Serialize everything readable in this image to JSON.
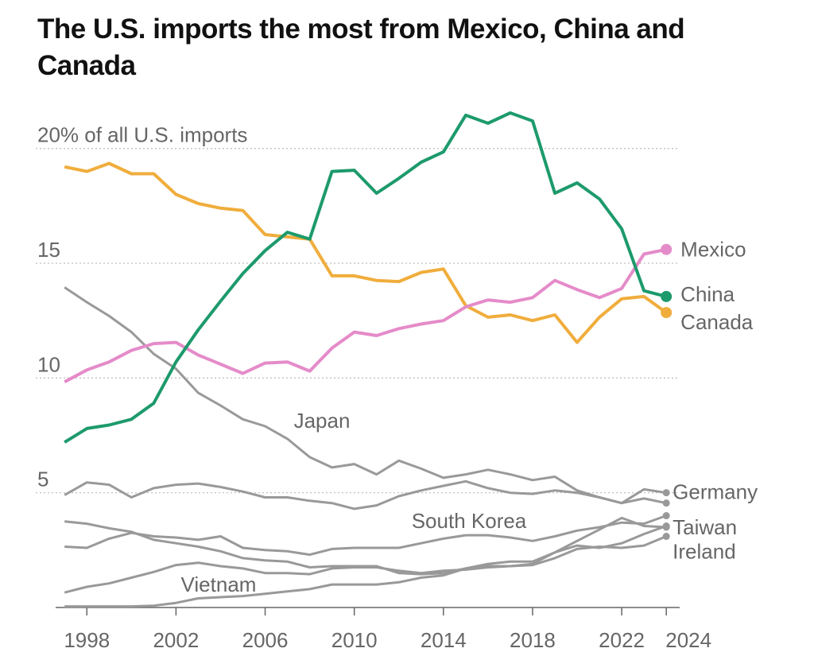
{
  "chart_data": {
    "type": "line",
    "title": "The U.S. imports the most from Mexico, China and Canada",
    "x": [
      1997,
      1998,
      1999,
      2000,
      2001,
      2002,
      2003,
      2004,
      2005,
      2006,
      2007,
      2008,
      2009,
      2010,
      2011,
      2012,
      2013,
      2014,
      2015,
      2016,
      2017,
      2018,
      2019,
      2020,
      2021,
      2022,
      2023,
      2024
    ],
    "xlim": [
      1996.6,
      2024.6
    ],
    "xticks": [
      1998,
      2002,
      2006,
      2010,
      2014,
      2018,
      2022,
      2024
    ],
    "ylim": [
      0,
      22
    ],
    "yticks": [
      5,
      10,
      15,
      {
        "value": 20,
        "label": "20% of all U.S. imports"
      }
    ],
    "grid": true,
    "series": [
      {
        "name": "Mexico",
        "color": "#e58bc9",
        "values": [
          9.83,
          10.35,
          10.7,
          11.2,
          11.5,
          11.55,
          11.0,
          10.6,
          10.2,
          10.65,
          10.7,
          10.3,
          11.3,
          12.0,
          11.85,
          12.15,
          12.35,
          12.5,
          13.1,
          13.4,
          13.3,
          13.5,
          14.25,
          13.85,
          13.5,
          13.9,
          15.4,
          15.6
        ]
      },
      {
        "name": "China",
        "color": "#1d9a6c",
        "values": [
          7.2,
          7.8,
          7.95,
          8.2,
          8.9,
          10.7,
          12.1,
          13.35,
          14.55,
          15.55,
          16.35,
          16.05,
          19.0,
          19.05,
          18.05,
          18.7,
          19.4,
          19.85,
          21.45,
          21.1,
          21.55,
          21.2,
          18.05,
          18.5,
          17.8,
          16.5,
          13.8,
          13.55
        ]
      },
      {
        "name": "Canada",
        "color": "#f0ad3c",
        "values": [
          19.2,
          19.0,
          19.35,
          18.9,
          18.9,
          18.0,
          17.6,
          17.4,
          17.3,
          16.25,
          16.15,
          16.05,
          14.45,
          14.45,
          14.25,
          14.2,
          14.6,
          14.75,
          13.15,
          12.65,
          12.75,
          12.5,
          12.75,
          11.55,
          12.65,
          13.45,
          13.55,
          12.85
        ]
      },
      {
        "name": "Japan",
        "color": "#999999",
        "values": [
          13.95,
          13.3,
          12.7,
          12.0,
          11.05,
          10.4,
          9.35,
          8.8,
          8.2,
          7.9,
          7.35,
          6.55,
          6.1,
          6.25,
          5.8,
          6.4,
          6.05,
          5.65,
          5.8,
          6.0,
          5.8,
          5.55,
          5.7,
          5.1,
          4.8,
          4.55,
          4.75,
          4.55
        ]
      },
      {
        "name": "Germany",
        "color": "#999999",
        "values": [
          4.9,
          5.45,
          5.35,
          4.8,
          5.2,
          5.35,
          5.4,
          5.25,
          5.05,
          4.8,
          4.8,
          4.65,
          4.55,
          4.3,
          4.45,
          4.85,
          5.1,
          5.3,
          5.5,
          5.2,
          5.0,
          4.95,
          5.1,
          5.0,
          4.8,
          4.55,
          5.15,
          5.0
        ]
      },
      {
        "name": "South Korea",
        "color": "#999999",
        "values": [
          2.65,
          2.6,
          3.0,
          3.25,
          3.1,
          3.05,
          2.95,
          3.1,
          2.6,
          2.5,
          2.45,
          2.3,
          2.55,
          2.6,
          2.6,
          2.6,
          2.8,
          3.0,
          3.15,
          3.15,
          3.05,
          2.9,
          3.1,
          3.35,
          3.5,
          3.7,
          3.65,
          4.0
        ]
      },
      {
        "name": "Taiwan",
        "color": "#999999",
        "values": [
          3.75,
          3.65,
          3.45,
          3.3,
          2.95,
          2.8,
          2.65,
          2.45,
          2.15,
          2.05,
          2.0,
          1.75,
          1.8,
          1.8,
          1.8,
          1.5,
          1.45,
          1.5,
          1.7,
          1.8,
          1.8,
          1.9,
          2.4,
          2.9,
          3.4,
          3.9,
          3.55,
          3.5
        ]
      },
      {
        "name": "Ireland",
        "color": "#999999",
        "values": [
          0.65,
          0.9,
          1.05,
          1.3,
          1.55,
          1.85,
          1.95,
          1.8,
          1.7,
          1.5,
          1.5,
          1.45,
          1.7,
          1.75,
          1.75,
          1.6,
          1.5,
          1.6,
          1.65,
          1.75,
          1.8,
          1.85,
          2.15,
          2.55,
          2.65,
          2.6,
          2.7,
          3.1
        ]
      },
      {
        "name": "Vietnam",
        "color": "#999999",
        "values": [
          0.05,
          0.05,
          0.05,
          0.05,
          0.08,
          0.2,
          0.4,
          0.45,
          0.5,
          0.6,
          0.7,
          0.8,
          1.0,
          1.0,
          1.0,
          1.1,
          1.3,
          1.4,
          1.7,
          1.9,
          2.0,
          2.0,
          2.4,
          2.7,
          2.6,
          2.8,
          3.2,
          3.55
        ]
      }
    ]
  }
}
